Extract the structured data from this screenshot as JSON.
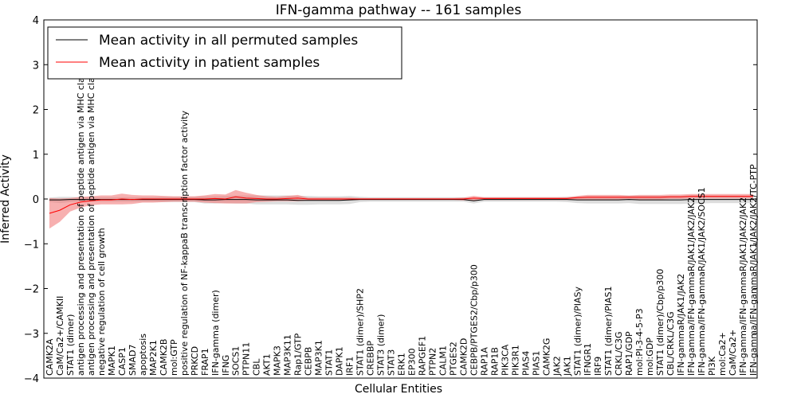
{
  "chart_data": {
    "type": "line",
    "title": "IFN-gamma pathway -- 161 samples",
    "xlabel": "Cellular Entities",
    "ylabel": "Inferred Activity",
    "ylim": [
      -4,
      4
    ],
    "yticks": [
      -4,
      -3,
      -2,
      -1,
      0,
      1,
      2,
      3,
      4
    ],
    "ytick_labels": [
      "−4",
      "−3",
      "−2",
      "−1",
      "0",
      "1",
      "2",
      "3",
      "4"
    ],
    "legend_position": "top-left",
    "categories": [
      "CAMK2A",
      "CaM/Ca2+/CAMKII",
      "STAT1 (dimer)",
      "antigen processing and presentation of peptide antigen via MHC class I",
      "antigen processing and presentation of peptide antigen via MHC class II",
      "negative regulation of cell growth",
      "MAPK1",
      "CASP1",
      "SMAD7",
      "apoptosis",
      "MAP2K1",
      "CAMK2B",
      "mol:GTP",
      "positive regulation of NF-kappaB transcription factor activity",
      "PRKCD",
      "FRAP1",
      "IFN-gamma (dimer)",
      "IFNG",
      "SOCS1",
      "PTPN11",
      "CBL",
      "AKT1",
      "MAPK3",
      "MAP3K11",
      "Rap1/GTP",
      "CEBPB",
      "MAP3K1",
      "STAT1",
      "DAPK1",
      "IRF1",
      "STAT1 (dimer)/SHP2",
      "CREBBP",
      "STAT3 (dimer)",
      "STAT3",
      "ERK1",
      "EP300",
      "RAPGEF1",
      "PTPN2",
      "CALM1",
      "PTGES2",
      "CAMK2D",
      "CEBPB/PTGES2/Cbp/p300",
      "RAP1A",
      "RAP1B",
      "PIK3CA",
      "PIK3R1",
      "PIAS4",
      "PIAS1",
      "CAMK2G",
      "JAK2",
      "JAK1",
      "STAT1 (dimer)/PIASy",
      "IFNGR1",
      "IRF9",
      "STAT1 (dimer)/PIAS1",
      "CRKL/C3G",
      "RAP1/GDP",
      "mol:PI-3-4-5-P3",
      "mol:GDP",
      "STAT1 (dimer)/Cbp/p300",
      "CBL/CRKL/C3G",
      "IFN-gammaR/JAK1/JAK2",
      "IFN-gamma/IFN-gammaR/JAK1/JAK2/JAK2",
      "IFN-gamma/IFN-gammaR/JAK1/JAK2/SOCS1",
      "PI3K",
      "mol:Ca2+",
      "CaM/Ca2+",
      "IFN-gamma/IFN-gammaR/JAK1/JAK2/JAK2",
      "IFN-gamma/IFN-gammaR/JAK1/JAK2/JAK2/TC-PTP"
    ],
    "series": [
      {
        "name": "Mean activity in all permuted samples",
        "color": "#000000",
        "band_color": "#bbbbbb",
        "values": [
          -0.02,
          -0.02,
          -0.01,
          -0.01,
          -0.01,
          -0.01,
          -0.01,
          -0.01,
          -0.01,
          -0.01,
          -0.01,
          -0.01,
          -0.01,
          -0.01,
          -0.01,
          -0.02,
          -0.02,
          -0.01,
          -0.01,
          -0.01,
          -0.02,
          -0.02,
          -0.02,
          -0.02,
          -0.03,
          -0.03,
          -0.03,
          -0.03,
          -0.03,
          -0.02,
          -0.01,
          -0.01,
          -0.01,
          -0.01,
          -0.01,
          -0.01,
          -0.01,
          -0.01,
          -0.01,
          -0.01,
          -0.01,
          -0.04,
          -0.01,
          -0.01,
          -0.01,
          -0.01,
          -0.01,
          -0.01,
          -0.01,
          -0.01,
          -0.01,
          -0.02,
          -0.02,
          -0.02,
          -0.02,
          -0.02,
          -0.01,
          -0.02,
          -0.02,
          -0.02,
          -0.02,
          -0.02,
          -0.01,
          -0.01,
          -0.01,
          -0.01,
          -0.01,
          -0.01,
          -0.01
        ],
        "band": [
          0.05,
          0.07,
          0.06,
          0.05,
          0.05,
          0.05,
          0.05,
          0.05,
          0.05,
          0.05,
          0.05,
          0.06,
          0.06,
          0.06,
          0.06,
          0.08,
          0.08,
          0.08,
          0.09,
          0.09,
          0.1,
          0.1,
          0.1,
          0.1,
          0.1,
          0.1,
          0.09,
          0.09,
          0.09,
          0.09,
          0.06,
          0.05,
          0.05,
          0.05,
          0.05,
          0.05,
          0.05,
          0.05,
          0.05,
          0.05,
          0.05,
          0.06,
          0.05,
          0.05,
          0.05,
          0.05,
          0.05,
          0.05,
          0.05,
          0.05,
          0.06,
          0.07,
          0.08,
          0.08,
          0.08,
          0.08,
          0.08,
          0.09,
          0.09,
          0.09,
          0.09,
          0.09,
          0.09,
          0.09,
          0.08,
          0.08,
          0.08,
          0.08,
          0.08
        ]
      },
      {
        "name": "Mean activity in patient samples",
        "color": "#ff0000",
        "band_color": "#f07070",
        "values": [
          -0.32,
          -0.25,
          -0.13,
          -0.07,
          -0.04,
          -0.02,
          -0.02,
          0.0,
          -0.01,
          0.0,
          0.0,
          0.0,
          0.0,
          0.0,
          0.0,
          0.0,
          0.01,
          0.0,
          0.05,
          0.02,
          0.01,
          0.0,
          0.0,
          0.01,
          0.02,
          0.0,
          0.0,
          0.0,
          0.0,
          0.0,
          0.0,
          0.0,
          0.0,
          0.0,
          0.0,
          0.0,
          0.0,
          0.0,
          0.0,
          0.0,
          0.0,
          0.02,
          0.01,
          0.01,
          0.01,
          0.01,
          0.01,
          0.01,
          0.01,
          0.01,
          0.01,
          0.03,
          0.04,
          0.04,
          0.04,
          0.04,
          0.04,
          0.04,
          0.04,
          0.04,
          0.05,
          0.05,
          0.06,
          0.06,
          0.06,
          0.06,
          0.06,
          0.06,
          0.06
        ],
        "band": [
          0.34,
          0.26,
          0.15,
          0.12,
          0.1,
          0.1,
          0.1,
          0.12,
          0.1,
          0.08,
          0.08,
          0.07,
          0.06,
          0.06,
          0.06,
          0.08,
          0.1,
          0.1,
          0.15,
          0.12,
          0.08,
          0.06,
          0.05,
          0.06,
          0.07,
          0.03,
          0.03,
          0.03,
          0.03,
          0.03,
          0.02,
          0.02,
          0.02,
          0.02,
          0.02,
          0.02,
          0.02,
          0.02,
          0.02,
          0.02,
          0.03,
          0.05,
          0.03,
          0.03,
          0.03,
          0.03,
          0.03,
          0.03,
          0.03,
          0.03,
          0.03,
          0.04,
          0.05,
          0.05,
          0.05,
          0.05,
          0.04,
          0.05,
          0.05,
          0.05,
          0.05,
          0.05,
          0.05,
          0.05,
          0.05,
          0.05,
          0.05,
          0.05,
          0.05
        ]
      }
    ]
  }
}
